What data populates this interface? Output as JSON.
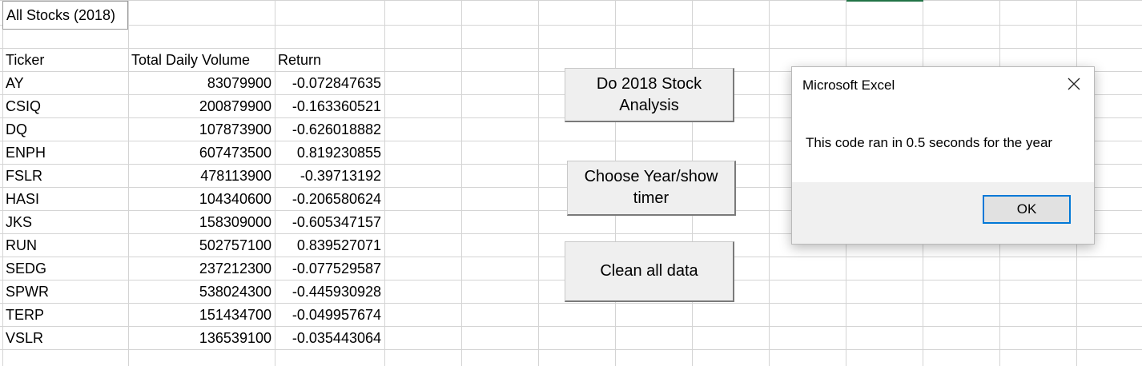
{
  "sheet": {
    "title_cell": "All Stocks (2018)",
    "headers": {
      "ticker": "Ticker",
      "volume": "Total Daily Volume",
      "return": "Return"
    },
    "rows": [
      {
        "ticker": "AY",
        "volume": "83079900",
        "return": "-0.072847635"
      },
      {
        "ticker": "CSIQ",
        "volume": "200879900",
        "return": "-0.163360521"
      },
      {
        "ticker": "DQ",
        "volume": "107873900",
        "return": "-0.626018882"
      },
      {
        "ticker": "ENPH",
        "volume": "607473500",
        "return": "0.819230855"
      },
      {
        "ticker": "FSLR",
        "volume": "478113900",
        "return": "-0.39713192"
      },
      {
        "ticker": "HASI",
        "volume": "104340600",
        "return": "-0.206580624"
      },
      {
        "ticker": "JKS",
        "volume": "158309000",
        "return": "-0.605347157"
      },
      {
        "ticker": "RUN",
        "volume": "502757100",
        "return": "0.839527071"
      },
      {
        "ticker": "SEDG",
        "volume": "237212300",
        "return": "-0.077529587"
      },
      {
        "ticker": "SPWR",
        "volume": "538024300",
        "return": "-0.445930928"
      },
      {
        "ticker": "TERP",
        "volume": "151434700",
        "return": "-0.049957674"
      },
      {
        "ticker": "VSLR",
        "volume": "136539100",
        "return": "-0.035443064"
      }
    ]
  },
  "buttons": {
    "analysis_line1": "Do 2018 Stock",
    "analysis_line2": "Analysis",
    "choose_line1": "Choose Year/show",
    "choose_line2": "timer",
    "clean": "Clean all data"
  },
  "dialog": {
    "title": "Microsoft Excel",
    "message": "This code ran in 0.5 seconds for the year",
    "ok_label": "OK",
    "close_icon": "close-icon"
  },
  "colors": {
    "gridline": "#d4d4d4",
    "button_face": "#efefef",
    "ok_border": "#0078d7",
    "dialog_footer": "#f0f0f0",
    "active_indicator": "#217346"
  }
}
